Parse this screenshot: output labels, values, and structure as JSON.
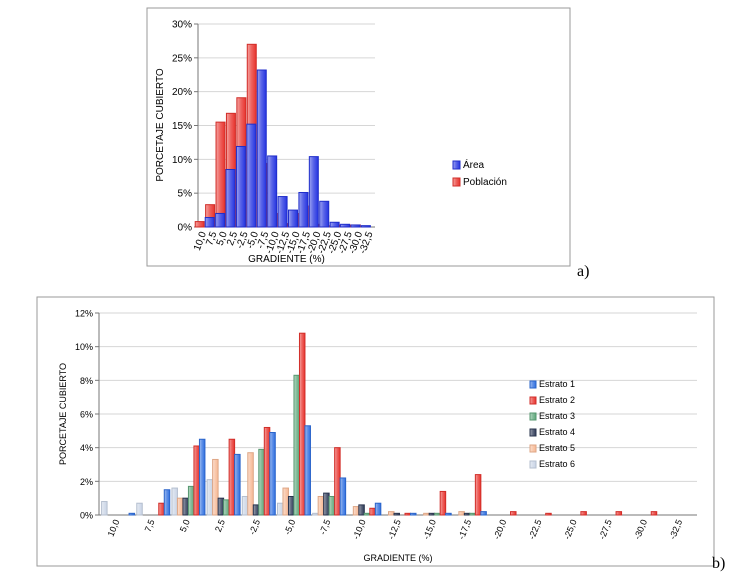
{
  "chart_data": [
    {
      "type": "bar",
      "panel_label": "a)",
      "categories": [
        "10,0",
        "7,5",
        "5,0",
        "2,5",
        "-2,5",
        "-5,0",
        "-7,5",
        "-10,0",
        "-12,5",
        "-15,0",
        "-17,5",
        "-20,0",
        "-22,5",
        "-25,0",
        "-27,5",
        "-30,0",
        "-32,5"
      ],
      "series": [
        {
          "name": "Población",
          "color": "#e8322c",
          "values": [
            0.8,
            3.3,
            15.5,
            16.8,
            19.1,
            27.0,
            9.4,
            2.0,
            0.5,
            2.0,
            3.1,
            0.4,
            0.2,
            0.3,
            0.3,
            0.3,
            0.0
          ]
        },
        {
          "name": "Área",
          "color": "#2433e0",
          "values": [
            1.4,
            2.0,
            8.5,
            11.9,
            15.2,
            23.2,
            10.5,
            4.5,
            2.5,
            5.1,
            10.4,
            3.8,
            0.7,
            0.4,
            0.3,
            0.2,
            0.0
          ]
        }
      ],
      "xlabel": "GRADIENTE (%)",
      "ylabel": "PORCETAJE CUBIERTO",
      "yticks": [
        "0%",
        "5%",
        "10%",
        "15%",
        "20%",
        "25%",
        "30%"
      ],
      "ylim": [
        0,
        30
      ],
      "grid": true,
      "legend_position": "right",
      "legend_order": [
        "Área",
        "Población"
      ]
    },
    {
      "type": "bar",
      "panel_label": "b)",
      "categories": [
        "10,0",
        "7,5",
        "5,0",
        "2,5",
        "-2,5",
        "-5,0",
        "-7,5",
        "-10,0",
        "-12,5",
        "-15,0",
        "-17,5",
        "-20,0",
        "-22,5",
        "-25,0",
        "-27,5",
        "-30,0",
        "-32,5"
      ],
      "series": [
        {
          "name": "Estrato 6",
          "color": "#c9d4e6",
          "values": [
            0.8,
            0.7,
            1.6,
            2.1,
            1.1,
            0.7,
            0.1,
            0.0,
            0.0,
            0.0,
            0.0,
            0.0,
            0.0,
            0.0,
            0.0,
            0.0,
            0.0
          ]
        },
        {
          "name": "Estrato 5",
          "color": "#f7b894",
          "values": [
            0.0,
            0.0,
            1.0,
            3.3,
            3.7,
            1.6,
            1.1,
            0.5,
            0.2,
            0.1,
            0.2,
            0.0,
            0.0,
            0.0,
            0.0,
            0.0,
            0.0
          ]
        },
        {
          "name": "Estrato 4",
          "color": "#2e3a57",
          "values": [
            0.0,
            0.0,
            1.0,
            1.0,
            0.6,
            1.1,
            1.3,
            0.6,
            0.1,
            0.1,
            0.1,
            0.0,
            0.0,
            0.0,
            0.0,
            0.0,
            0.0
          ]
        },
        {
          "name": "Estrato 3",
          "color": "#5fa87b",
          "values": [
            0.0,
            0.0,
            1.7,
            0.9,
            3.9,
            8.3,
            1.1,
            0.1,
            0.0,
            0.1,
            0.1,
            0.0,
            0.0,
            0.0,
            0.0,
            0.0,
            0.0
          ]
        },
        {
          "name": "Estrato 2",
          "color": "#e8322c",
          "values": [
            0.0,
            0.7,
            4.1,
            4.5,
            5.2,
            10.8,
            4.0,
            0.4,
            0.1,
            1.4,
            2.4,
            0.2,
            0.1,
            0.2,
            0.2,
            0.2,
            0.0
          ]
        },
        {
          "name": "Estrato 1",
          "color": "#2f6fe0",
          "values": [
            0.1,
            1.5,
            4.5,
            3.6,
            4.9,
            5.3,
            2.2,
            0.7,
            0.1,
            0.1,
            0.2,
            0.0,
            0.0,
            0.0,
            0.0,
            0.0,
            0.0
          ]
        }
      ],
      "xlabel": "GRADIENTE (%)",
      "ylabel": "PORCETAJE CUBIERTO",
      "yticks": [
        "0%",
        "2%",
        "4%",
        "6%",
        "8%",
        "10%",
        "12%"
      ],
      "ylim": [
        0,
        12
      ],
      "grid": true,
      "legend_position": "right",
      "legend_order": [
        "Estrato 1",
        "Estrato 2",
        "Estrato 3",
        "Estrato 4",
        "Estrato 5",
        "Estrato 6"
      ]
    }
  ]
}
